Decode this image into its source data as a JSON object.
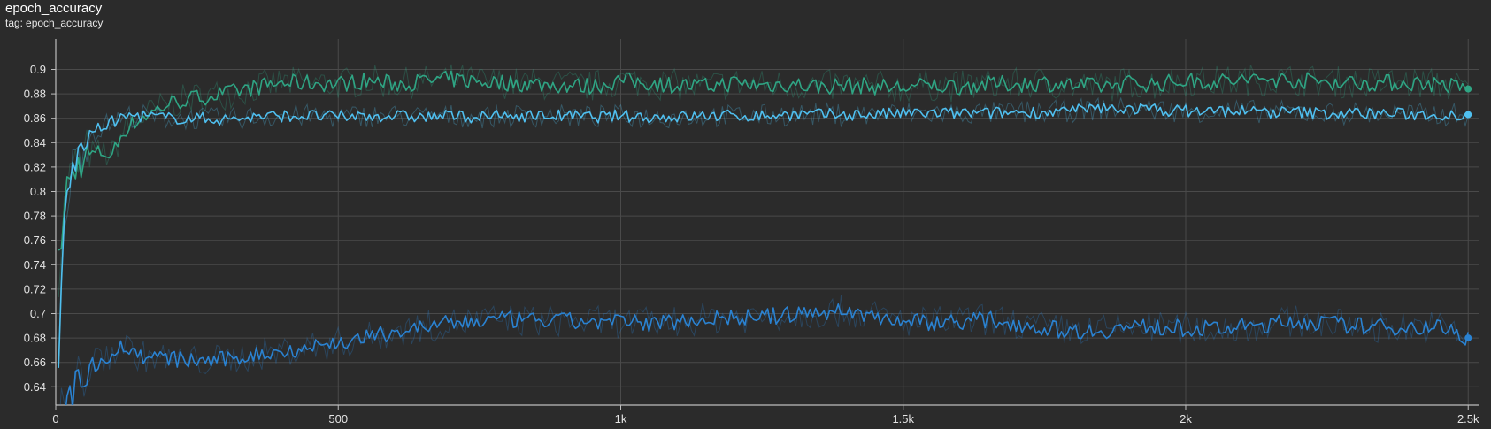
{
  "card": {
    "title": "epoch_accuracy",
    "tag_prefix": "tag:",
    "tag_value": "epoch_accuracy"
  },
  "colors": {
    "background": "#2b2b2b",
    "grid": "#4a4a4a",
    "axis": "#bdbdbd",
    "series_green": "#2fa584",
    "series_light_blue": "#4fbfef",
    "series_blue": "#2a82d1"
  },
  "chart_data": {
    "type": "line",
    "title": "epoch_accuracy",
    "xlabel": "",
    "ylabel": "",
    "xlim": [
      0,
      2520
    ],
    "ylim": [
      0.625,
      0.925
    ],
    "x_ticks": [
      {
        "value": 0,
        "label": "0"
      },
      {
        "value": 500,
        "label": "500"
      },
      {
        "value": 1000,
        "label": "1k"
      },
      {
        "value": 1500,
        "label": "1.5k"
      },
      {
        "value": 2000,
        "label": "2k"
      },
      {
        "value": 2500,
        "label": "2.5k"
      }
    ],
    "y_ticks": [
      {
        "value": 0.64,
        "label": "0.64"
      },
      {
        "value": 0.66,
        "label": "0.66"
      },
      {
        "value": 0.68,
        "label": "0.68"
      },
      {
        "value": 0.7,
        "label": "0.7"
      },
      {
        "value": 0.72,
        "label": "0.72"
      },
      {
        "value": 0.74,
        "label": "0.74"
      },
      {
        "value": 0.76,
        "label": "0.76"
      },
      {
        "value": 0.78,
        "label": "0.78"
      },
      {
        "value": 0.8,
        "label": "0.8"
      },
      {
        "value": 0.82,
        "label": "0.82"
      },
      {
        "value": 0.84,
        "label": "0.84"
      },
      {
        "value": 0.86,
        "label": "0.86"
      },
      {
        "value": 0.88,
        "label": "0.88"
      },
      {
        "value": 0.9,
        "label": "0.9"
      }
    ],
    "grid": true,
    "smoothed_with_raw_shadow": true,
    "series": [
      {
        "color": "#2fa584",
        "x": [
          5,
          20,
          40,
          60,
          80,
          100,
          120,
          150,
          200,
          250,
          300,
          350,
          400,
          450,
          500,
          550,
          600,
          650,
          700,
          750,
          800,
          850,
          900,
          950,
          1000,
          1050,
          1100,
          1150,
          1200,
          1250,
          1300,
          1350,
          1400,
          1450,
          1500,
          1550,
          1600,
          1650,
          1700,
          1750,
          1800,
          1850,
          1900,
          1950,
          2000,
          2050,
          2100,
          2150,
          2200,
          2250,
          2300,
          2350,
          2400,
          2450,
          2500
        ],
        "y": [
          0.74,
          0.805,
          0.822,
          0.83,
          0.832,
          0.83,
          0.85,
          0.86,
          0.872,
          0.877,
          0.88,
          0.885,
          0.889,
          0.889,
          0.888,
          0.891,
          0.888,
          0.89,
          0.892,
          0.89,
          0.889,
          0.888,
          0.887,
          0.886,
          0.891,
          0.889,
          0.887,
          0.886,
          0.889,
          0.887,
          0.888,
          0.886,
          0.887,
          0.886,
          0.885,
          0.887,
          0.886,
          0.888,
          0.888,
          0.889,
          0.887,
          0.886,
          0.889,
          0.888,
          0.891,
          0.89,
          0.891,
          0.892,
          0.891,
          0.89,
          0.889,
          0.889,
          0.889,
          0.888,
          0.884
        ]
      },
      {
        "color": "#4fbfef",
        "x": [
          5,
          15,
          30,
          50,
          70,
          100,
          130,
          160,
          200,
          250,
          300,
          350,
          400,
          450,
          500,
          550,
          600,
          650,
          700,
          750,
          800,
          850,
          900,
          950,
          1000,
          1050,
          1100,
          1150,
          1200,
          1250,
          1300,
          1350,
          1400,
          1450,
          1500,
          1550,
          1600,
          1650,
          1700,
          1750,
          1800,
          1850,
          1900,
          1950,
          2000,
          2050,
          2100,
          2150,
          2200,
          2250,
          2300,
          2350,
          2400,
          2450,
          2500
        ],
        "y": [
          0.662,
          0.78,
          0.82,
          0.84,
          0.85,
          0.857,
          0.862,
          0.862,
          0.86,
          0.86,
          0.859,
          0.861,
          0.862,
          0.862,
          0.861,
          0.862,
          0.862,
          0.861,
          0.862,
          0.861,
          0.862,
          0.862,
          0.862,
          0.861,
          0.862,
          0.861,
          0.861,
          0.862,
          0.862,
          0.862,
          0.863,
          0.863,
          0.863,
          0.863,
          0.864,
          0.864,
          0.864,
          0.864,
          0.865,
          0.865,
          0.866,
          0.868,
          0.868,
          0.867,
          0.866,
          0.866,
          0.866,
          0.865,
          0.865,
          0.864,
          0.864,
          0.864,
          0.863,
          0.863,
          0.863
        ]
      },
      {
        "color": "#2a82d1",
        "x": [
          5,
          20,
          40,
          60,
          80,
          100,
          120,
          150,
          200,
          250,
          300,
          350,
          400,
          450,
          500,
          550,
          600,
          650,
          700,
          750,
          800,
          850,
          900,
          950,
          1000,
          1050,
          1100,
          1150,
          1200,
          1250,
          1300,
          1350,
          1400,
          1450,
          1500,
          1550,
          1600,
          1650,
          1700,
          1750,
          1800,
          1850,
          1900,
          1950,
          2000,
          2050,
          2100,
          2150,
          2200,
          2250,
          2300,
          2350,
          2400,
          2450,
          2500
        ],
        "y": [
          0.612,
          0.625,
          0.645,
          0.656,
          0.662,
          0.668,
          0.674,
          0.665,
          0.663,
          0.661,
          0.662,
          0.666,
          0.669,
          0.673,
          0.676,
          0.68,
          0.685,
          0.689,
          0.692,
          0.694,
          0.695,
          0.694,
          0.694,
          0.693,
          0.693,
          0.692,
          0.694,
          0.696,
          0.697,
          0.697,
          0.699,
          0.701,
          0.702,
          0.698,
          0.694,
          0.693,
          0.694,
          0.695,
          0.692,
          0.688,
          0.686,
          0.686,
          0.689,
          0.689,
          0.688,
          0.687,
          0.689,
          0.691,
          0.694,
          0.692,
          0.69,
          0.689,
          0.689,
          0.689,
          0.68
        ]
      }
    ]
  }
}
